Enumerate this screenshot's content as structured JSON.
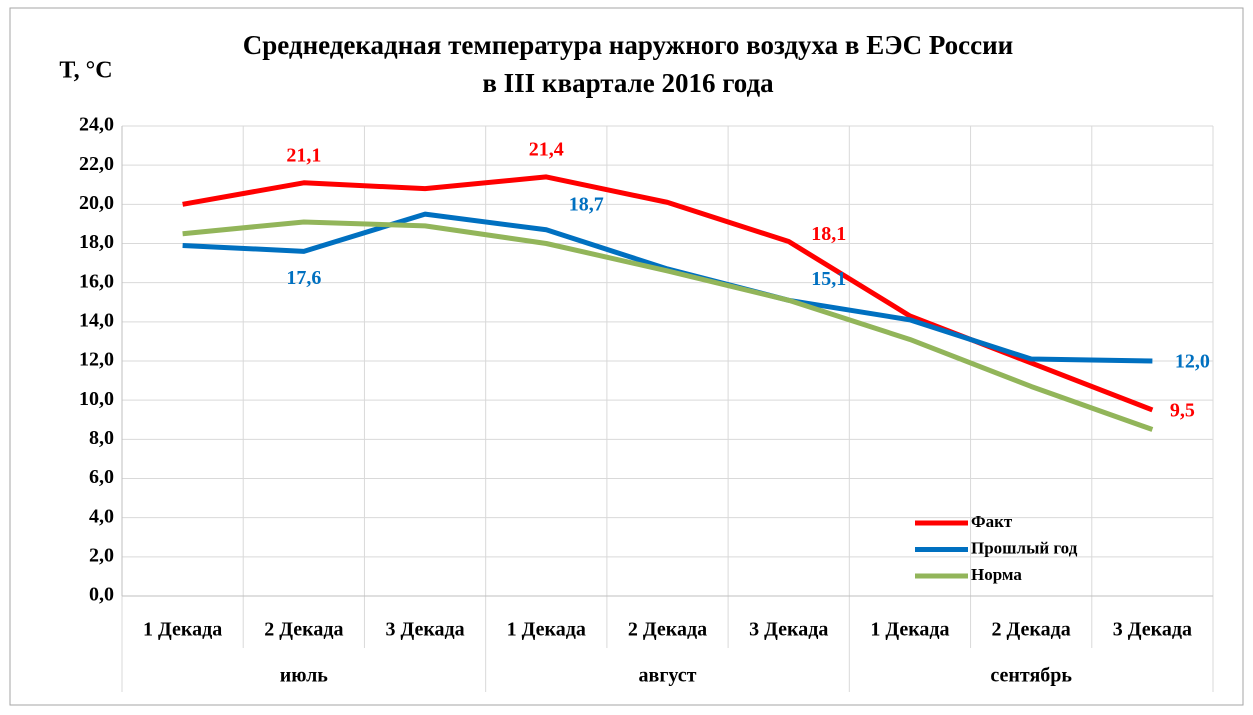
{
  "chart_data": {
    "type": "line",
    "title": "Среднедекадная температура наружного воздуха в ЕЭС России",
    "subtitle": "в III квартале 2016 года",
    "y_label": "T, °C",
    "categories": [
      "1 Декада",
      "2 Декада",
      "3 Декада",
      "1 Декада",
      "2 Декада",
      "3 Декада",
      "1 Декада",
      "2 Декада",
      "3 Декада"
    ],
    "groups": [
      "июль",
      "август",
      "сентябрь"
    ],
    "series": [
      {
        "name": "Факт",
        "color": "#ff0000",
        "values": [
          20.0,
          21.1,
          20.8,
          21.4,
          20.1,
          18.1,
          14.3,
          11.9,
          9.5
        ],
        "value_labels": [
          null,
          "21,1",
          null,
          "21,4",
          null,
          "18,1",
          null,
          null,
          "9,5"
        ]
      },
      {
        "name": "Прошлый год",
        "color": "#0070c0",
        "values": [
          17.9,
          17.6,
          19.5,
          18.7,
          16.7,
          15.1,
          14.1,
          12.1,
          12.0
        ],
        "value_labels": [
          null,
          "17,6",
          null,
          "18,7",
          null,
          "15,1",
          null,
          null,
          "12,0"
        ]
      },
      {
        "name": "Норма",
        "color": "#92b55a",
        "values": [
          18.5,
          19.1,
          18.9,
          18.0,
          16.6,
          15.1,
          13.1,
          10.7,
          8.5
        ]
      }
    ],
    "ylim": [
      0,
      24
    ],
    "yticks": [
      {
        "value": 0,
        "label": "0,0"
      },
      {
        "value": 2,
        "label": "2,0"
      },
      {
        "value": 4,
        "label": "4,0"
      },
      {
        "value": 6,
        "label": "6,0"
      },
      {
        "value": 8,
        "label": "8,0"
      },
      {
        "value": 10,
        "label": "10,0"
      },
      {
        "value": 12,
        "label": "12,0"
      },
      {
        "value": 14,
        "label": "14,0"
      },
      {
        "value": 16,
        "label": "16,0"
      },
      {
        "value": 18,
        "label": "18,0"
      },
      {
        "value": 20,
        "label": "20,0"
      },
      {
        "value": 22,
        "label": "22,0"
      },
      {
        "value": 24,
        "label": "24,0"
      }
    ],
    "grid": true,
    "legend": "lower right"
  }
}
